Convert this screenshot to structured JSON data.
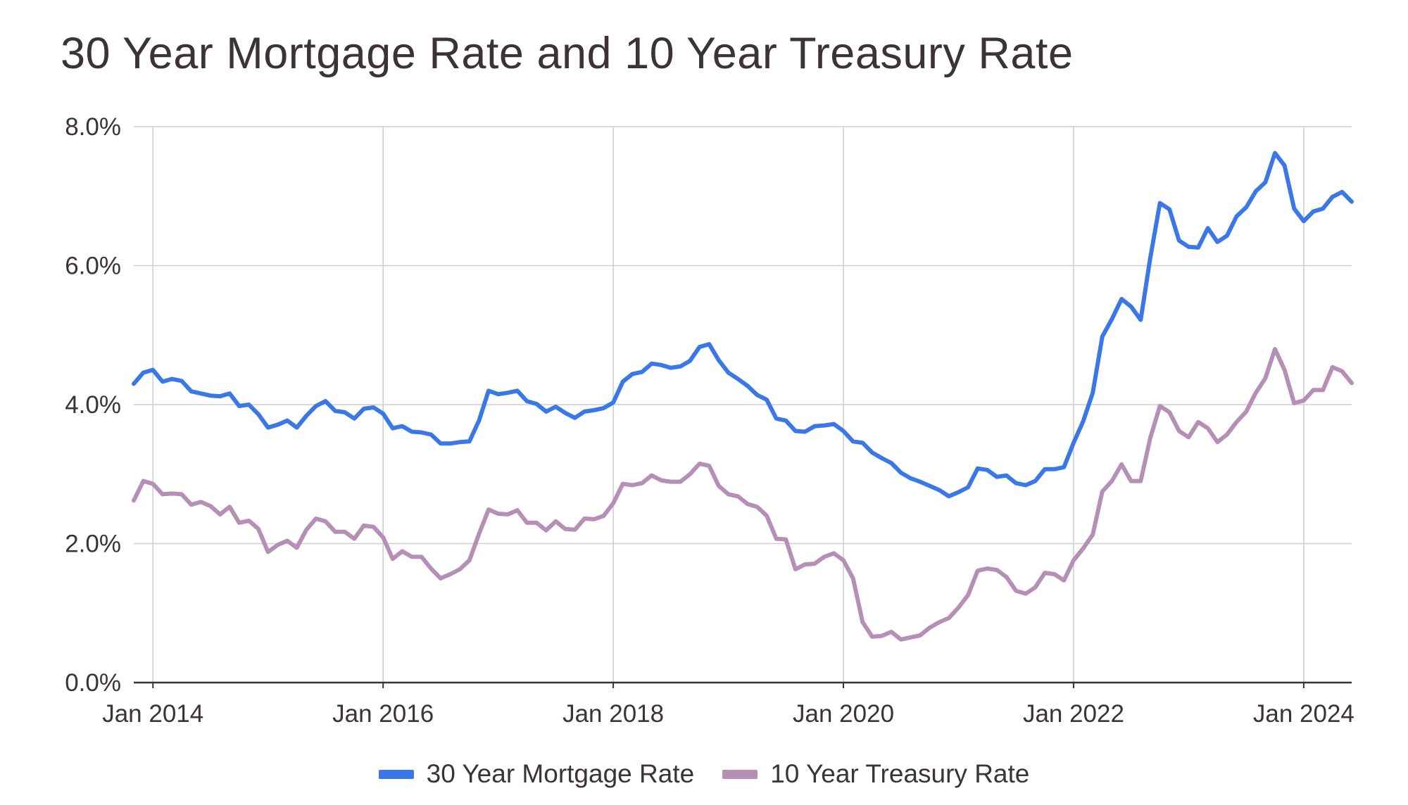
{
  "chart_data": {
    "type": "line",
    "title": "30 Year Mortgage Rate and 10 Year Treasury Rate",
    "xlabel": "",
    "ylabel": "",
    "x_range": [
      "2013-11",
      "2024-06"
    ],
    "ylim": [
      0,
      8
    ],
    "x_ticks": [
      "Jan 2014",
      "Jan 2016",
      "Jan 2018",
      "Jan 2020",
      "Jan 2022",
      "Jan 2024"
    ],
    "y_ticks": [
      "0.0%",
      "2.0%",
      "4.0%",
      "6.0%",
      "8.0%"
    ],
    "grid": true,
    "legend_position": "bottom",
    "series": [
      {
        "name": "30 Year Mortgage Rate",
        "color": "#3b78e7",
        "points": [
          [
            "2013-11",
            4.3
          ],
          [
            "2013-12",
            4.46
          ],
          [
            "2014-01",
            4.5
          ],
          [
            "2014-02",
            4.33
          ],
          [
            "2014-03",
            4.37
          ],
          [
            "2014-04",
            4.34
          ],
          [
            "2014-05",
            4.19
          ],
          [
            "2014-06",
            4.16
          ],
          [
            "2014-07",
            4.13
          ],
          [
            "2014-08",
            4.12
          ],
          [
            "2014-09",
            4.16
          ],
          [
            "2014-10",
            3.98
          ],
          [
            "2014-11",
            4.0
          ],
          [
            "2014-12",
            3.86
          ],
          [
            "2015-01",
            3.67
          ],
          [
            "2015-02",
            3.71
          ],
          [
            "2015-03",
            3.77
          ],
          [
            "2015-04",
            3.67
          ],
          [
            "2015-05",
            3.84
          ],
          [
            "2015-06",
            3.98
          ],
          [
            "2015-07",
            4.05
          ],
          [
            "2015-08",
            3.91
          ],
          [
            "2015-09",
            3.89
          ],
          [
            "2015-10",
            3.8
          ],
          [
            "2015-11",
            3.94
          ],
          [
            "2015-12",
            3.96
          ],
          [
            "2016-01",
            3.87
          ],
          [
            "2016-02",
            3.66
          ],
          [
            "2016-03",
            3.69
          ],
          [
            "2016-04",
            3.61
          ],
          [
            "2016-05",
            3.6
          ],
          [
            "2016-06",
            3.57
          ],
          [
            "2016-07",
            3.44
          ],
          [
            "2016-08",
            3.44
          ],
          [
            "2016-09",
            3.46
          ],
          [
            "2016-10",
            3.47
          ],
          [
            "2016-11",
            3.77
          ],
          [
            "2016-12",
            4.2
          ],
          [
            "2017-01",
            4.15
          ],
          [
            "2017-02",
            4.17
          ],
          [
            "2017-03",
            4.2
          ],
          [
            "2017-04",
            4.05
          ],
          [
            "2017-05",
            4.01
          ],
          [
            "2017-06",
            3.9
          ],
          [
            "2017-07",
            3.97
          ],
          [
            "2017-08",
            3.88
          ],
          [
            "2017-09",
            3.81
          ],
          [
            "2017-10",
            3.9
          ],
          [
            "2017-11",
            3.92
          ],
          [
            "2017-12",
            3.95
          ],
          [
            "2018-01",
            4.03
          ],
          [
            "2018-02",
            4.33
          ],
          [
            "2018-03",
            4.44
          ],
          [
            "2018-04",
            4.47
          ],
          [
            "2018-05",
            4.59
          ],
          [
            "2018-06",
            4.57
          ],
          [
            "2018-07",
            4.53
          ],
          [
            "2018-08",
            4.55
          ],
          [
            "2018-09",
            4.63
          ],
          [
            "2018-10",
            4.83
          ],
          [
            "2018-11",
            4.87
          ],
          [
            "2018-12",
            4.64
          ],
          [
            "2019-01",
            4.46
          ],
          [
            "2019-02",
            4.37
          ],
          [
            "2019-03",
            4.27
          ],
          [
            "2019-04",
            4.14
          ],
          [
            "2019-05",
            4.07
          ],
          [
            "2019-06",
            3.8
          ],
          [
            "2019-07",
            3.77
          ],
          [
            "2019-08",
            3.62
          ],
          [
            "2019-09",
            3.61
          ],
          [
            "2019-10",
            3.69
          ],
          [
            "2019-11",
            3.7
          ],
          [
            "2019-12",
            3.72
          ],
          [
            "2020-01",
            3.62
          ],
          [
            "2020-02",
            3.47
          ],
          [
            "2020-03",
            3.45
          ],
          [
            "2020-04",
            3.31
          ],
          [
            "2020-05",
            3.23
          ],
          [
            "2020-06",
            3.16
          ],
          [
            "2020-07",
            3.02
          ],
          [
            "2020-08",
            2.94
          ],
          [
            "2020-09",
            2.89
          ],
          [
            "2020-10",
            2.83
          ],
          [
            "2020-11",
            2.77
          ],
          [
            "2020-12",
            2.68
          ],
          [
            "2021-01",
            2.74
          ],
          [
            "2021-02",
            2.81
          ],
          [
            "2021-03",
            3.08
          ],
          [
            "2021-04",
            3.06
          ],
          [
            "2021-05",
            2.96
          ],
          [
            "2021-06",
            2.98
          ],
          [
            "2021-07",
            2.87
          ],
          [
            "2021-08",
            2.84
          ],
          [
            "2021-09",
            2.9
          ],
          [
            "2021-10",
            3.07
          ],
          [
            "2021-11",
            3.07
          ],
          [
            "2021-12",
            3.1
          ],
          [
            "2022-01",
            3.45
          ],
          [
            "2022-02",
            3.76
          ],
          [
            "2022-03",
            4.17
          ],
          [
            "2022-04",
            4.98
          ],
          [
            "2022-05",
            5.23
          ],
          [
            "2022-06",
            5.52
          ],
          [
            "2022-07",
            5.41
          ],
          [
            "2022-08",
            5.22
          ],
          [
            "2022-09",
            6.11
          ],
          [
            "2022-10",
            6.9
          ],
          [
            "2022-11",
            6.81
          ],
          [
            "2022-12",
            6.36
          ],
          [
            "2023-01",
            6.27
          ],
          [
            "2023-02",
            6.26
          ],
          [
            "2023-03",
            6.54
          ],
          [
            "2023-04",
            6.34
          ],
          [
            "2023-05",
            6.43
          ],
          [
            "2023-06",
            6.71
          ],
          [
            "2023-07",
            6.84
          ],
          [
            "2023-08",
            7.07
          ],
          [
            "2023-09",
            7.2
          ],
          [
            "2023-10",
            7.62
          ],
          [
            "2023-11",
            7.44
          ],
          [
            "2023-12",
            6.82
          ],
          [
            "2024-01",
            6.64
          ],
          [
            "2024-02",
            6.78
          ],
          [
            "2024-03",
            6.82
          ],
          [
            "2024-04",
            6.99
          ],
          [
            "2024-05",
            7.06
          ],
          [
            "2024-06",
            6.92
          ]
        ]
      },
      {
        "name": "10 Year Treasury Rate",
        "color": "#b58fb5",
        "points": [
          [
            "2013-11",
            2.62
          ],
          [
            "2013-12",
            2.9
          ],
          [
            "2014-01",
            2.86
          ],
          [
            "2014-02",
            2.71
          ],
          [
            "2014-03",
            2.72
          ],
          [
            "2014-04",
            2.71
          ],
          [
            "2014-05",
            2.56
          ],
          [
            "2014-06",
            2.6
          ],
          [
            "2014-07",
            2.54
          ],
          [
            "2014-08",
            2.42
          ],
          [
            "2014-09",
            2.53
          ],
          [
            "2014-10",
            2.3
          ],
          [
            "2014-11",
            2.33
          ],
          [
            "2014-12",
            2.21
          ],
          [
            "2015-01",
            1.88
          ],
          [
            "2015-02",
            1.98
          ],
          [
            "2015-03",
            2.04
          ],
          [
            "2015-04",
            1.94
          ],
          [
            "2015-05",
            2.2
          ],
          [
            "2015-06",
            2.36
          ],
          [
            "2015-07",
            2.32
          ],
          [
            "2015-08",
            2.17
          ],
          [
            "2015-09",
            2.17
          ],
          [
            "2015-10",
            2.07
          ],
          [
            "2015-11",
            2.26
          ],
          [
            "2015-12",
            2.24
          ],
          [
            "2016-01",
            2.09
          ],
          [
            "2016-02",
            1.78
          ],
          [
            "2016-03",
            1.89
          ],
          [
            "2016-04",
            1.81
          ],
          [
            "2016-05",
            1.81
          ],
          [
            "2016-06",
            1.64
          ],
          [
            "2016-07",
            1.5
          ],
          [
            "2016-08",
            1.56
          ],
          [
            "2016-09",
            1.63
          ],
          [
            "2016-10",
            1.76
          ],
          [
            "2016-11",
            2.14
          ],
          [
            "2016-12",
            2.49
          ],
          [
            "2017-01",
            2.43
          ],
          [
            "2017-02",
            2.42
          ],
          [
            "2017-03",
            2.48
          ],
          [
            "2017-04",
            2.3
          ],
          [
            "2017-05",
            2.3
          ],
          [
            "2017-06",
            2.19
          ],
          [
            "2017-07",
            2.32
          ],
          [
            "2017-08",
            2.21
          ],
          [
            "2017-09",
            2.2
          ],
          [
            "2017-10",
            2.36
          ],
          [
            "2017-11",
            2.35
          ],
          [
            "2017-12",
            2.4
          ],
          [
            "2018-01",
            2.58
          ],
          [
            "2018-02",
            2.86
          ],
          [
            "2018-03",
            2.84
          ],
          [
            "2018-04",
            2.87
          ],
          [
            "2018-05",
            2.98
          ],
          [
            "2018-06",
            2.91
          ],
          [
            "2018-07",
            2.89
          ],
          [
            "2018-08",
            2.89
          ],
          [
            "2018-09",
            3.0
          ],
          [
            "2018-10",
            3.15
          ],
          [
            "2018-11",
            3.12
          ],
          [
            "2018-12",
            2.83
          ],
          [
            "2019-01",
            2.71
          ],
          [
            "2019-02",
            2.68
          ],
          [
            "2019-03",
            2.57
          ],
          [
            "2019-04",
            2.53
          ],
          [
            "2019-05",
            2.4
          ],
          [
            "2019-06",
            2.07
          ],
          [
            "2019-07",
            2.06
          ],
          [
            "2019-08",
            1.63
          ],
          [
            "2019-09",
            1.7
          ],
          [
            "2019-10",
            1.71
          ],
          [
            "2019-11",
            1.81
          ],
          [
            "2019-12",
            1.86
          ],
          [
            "2020-01",
            1.76
          ],
          [
            "2020-02",
            1.5
          ],
          [
            "2020-03",
            0.87
          ],
          [
            "2020-04",
            0.66
          ],
          [
            "2020-05",
            0.67
          ],
          [
            "2020-06",
            0.73
          ],
          [
            "2020-07",
            0.62
          ],
          [
            "2020-08",
            0.65
          ],
          [
            "2020-09",
            0.68
          ],
          [
            "2020-10",
            0.79
          ],
          [
            "2020-11",
            0.87
          ],
          [
            "2020-12",
            0.93
          ],
          [
            "2021-01",
            1.08
          ],
          [
            "2021-02",
            1.26
          ],
          [
            "2021-03",
            1.61
          ],
          [
            "2021-04",
            1.64
          ],
          [
            "2021-05",
            1.62
          ],
          [
            "2021-06",
            1.52
          ],
          [
            "2021-07",
            1.32
          ],
          [
            "2021-08",
            1.28
          ],
          [
            "2021-09",
            1.37
          ],
          [
            "2021-10",
            1.58
          ],
          [
            "2021-11",
            1.56
          ],
          [
            "2021-12",
            1.47
          ],
          [
            "2022-01",
            1.76
          ],
          [
            "2022-02",
            1.93
          ],
          [
            "2022-03",
            2.13
          ],
          [
            "2022-04",
            2.75
          ],
          [
            "2022-05",
            2.9
          ],
          [
            "2022-06",
            3.14
          ],
          [
            "2022-07",
            2.9
          ],
          [
            "2022-08",
            2.9
          ],
          [
            "2022-09",
            3.52
          ],
          [
            "2022-10",
            3.98
          ],
          [
            "2022-11",
            3.89
          ],
          [
            "2022-12",
            3.62
          ],
          [
            "2023-01",
            3.53
          ],
          [
            "2023-02",
            3.75
          ],
          [
            "2023-03",
            3.66
          ],
          [
            "2023-04",
            3.46
          ],
          [
            "2023-05",
            3.57
          ],
          [
            "2023-06",
            3.75
          ],
          [
            "2023-07",
            3.9
          ],
          [
            "2023-08",
            4.17
          ],
          [
            "2023-09",
            4.38
          ],
          [
            "2023-10",
            4.8
          ],
          [
            "2023-11",
            4.5
          ],
          [
            "2023-12",
            4.02
          ],
          [
            "2024-01",
            4.06
          ],
          [
            "2024-02",
            4.21
          ],
          [
            "2024-03",
            4.21
          ],
          [
            "2024-04",
            4.54
          ],
          [
            "2024-05",
            4.48
          ],
          [
            "2024-06",
            4.31
          ]
        ]
      }
    ]
  }
}
